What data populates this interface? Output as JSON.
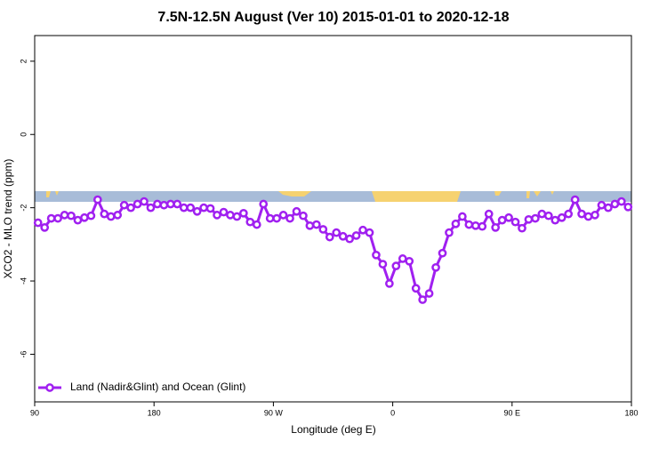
{
  "chart_data": {
    "type": "line",
    "title": "7.5N-12.5N August (Ver 10)   2015-01-01 to 2020-12-18",
    "x_label": "Longitude (deg E)",
    "y_label": "XCO2 - MLO trend (ppm)",
    "x": [
      92.5,
      97.5,
      102.5,
      107.5,
      112.5,
      117.5,
      122.5,
      127.5,
      132.5,
      137.5,
      142.5,
      147.5,
      152.5,
      157.5,
      162.5,
      167.5,
      172.5,
      177.5,
      182.5,
      187.5,
      192.5,
      197.5,
      202.5,
      207.5,
      212.5,
      217.5,
      222.5,
      227.5,
      232.5,
      237.5,
      242.5,
      247.5,
      252.5,
      257.5,
      262.5,
      267.5,
      272.5,
      277.5,
      282.5,
      287.5,
      292.5,
      297.5,
      302.5,
      307.5,
      312.5,
      317.5,
      322.5,
      327.5,
      332.5,
      337.5,
      342.5,
      347.5,
      352.5,
      357.5,
      362.5,
      367.5,
      372.5,
      377.5,
      382.5,
      387.5,
      392.5,
      397.5,
      402.5,
      407.5,
      412.5,
      417.5,
      422.5,
      427.5,
      432.5,
      437.5,
      442.5,
      447.5,
      452.5,
      457.5,
      462.5,
      467.5,
      472.5,
      477.5,
      482.5,
      487.5,
      492.5,
      497.5,
      502.5,
      507.5,
      512.5,
      517.5,
      522.5,
      527.5,
      532.5,
      537.5
    ],
    "series": [
      {
        "name": "Land (Nadir&Glint) and Ocean (Glint)",
        "color": "#a020f0",
        "values": [
          -2.41,
          -2.54,
          -2.29,
          -2.29,
          -2.2,
          -2.22,
          -2.34,
          -2.27,
          -2.22,
          -1.78,
          -2.17,
          -2.24,
          -2.2,
          -1.93,
          -2.0,
          -1.9,
          -1.83,
          -2.0,
          -1.9,
          -1.93,
          -1.9,
          -1.9,
          -2.0,
          -2.0,
          -2.1,
          -2.0,
          -2.02,
          -2.2,
          -2.12,
          -2.2,
          -2.24,
          -2.15,
          -2.39,
          -2.46,
          -1.9,
          -2.29,
          -2.29,
          -2.2,
          -2.29,
          -2.1,
          -2.22,
          -2.49,
          -2.46,
          -2.59,
          -2.8,
          -2.68,
          -2.78,
          -2.85,
          -2.76,
          -2.61,
          -2.68,
          -3.29,
          -3.54,
          -4.07,
          -3.59,
          -3.39,
          -3.46,
          -4.2,
          -4.51,
          -4.34,
          -3.63,
          -3.24,
          -2.68,
          -2.44,
          -2.24,
          -2.46,
          -2.49,
          -2.51,
          -2.17,
          -2.54,
          -2.34,
          -2.27,
          -2.39,
          -2.56,
          -2.32,
          -2.29,
          -2.17,
          -2.22,
          -2.34,
          -2.27,
          -2.17,
          -1.78,
          -2.17,
          -2.24,
          -2.2,
          -1.93,
          -2.0,
          -1.9,
          -1.83,
          -1.98
        ]
      }
    ],
    "xlim": [
      90,
      540
    ],
    "xticks": [
      90,
      180,
      {
        "value": 270,
        "label": "90 W"
      },
      {
        "value": 360,
        "label": "0"
      },
      {
        "value": 450,
        "label": "90 E"
      },
      {
        "value": 540,
        "label": "180"
      }
    ],
    "ylim": [
      -7.3,
      2.7
    ],
    "yticks": [
      2,
      0,
      -2,
      -4,
      -6
    ],
    "legend_position": "bottom-left",
    "grid": false
  }
}
